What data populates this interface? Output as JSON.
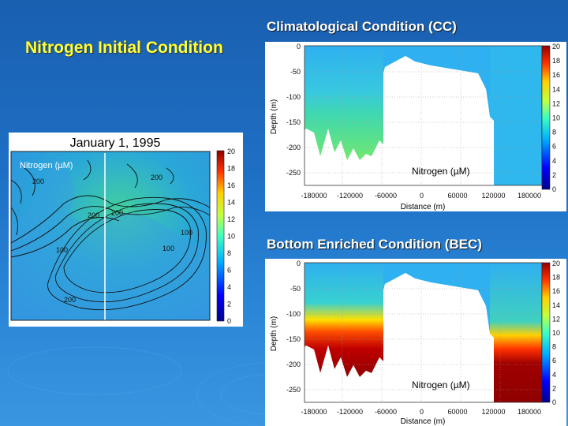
{
  "slide": {
    "title": "Nitrogen Initial Condition",
    "colors": {
      "background": "#1e6fc4",
      "title": "#ffff33",
      "heading": "#ffffff"
    }
  },
  "map_panel": {
    "title": "January 1, 1995",
    "label": "Nitrogen (µM)",
    "contour_labels": [
      "200",
      "200",
      "100",
      "100",
      "200",
      "100",
      "200",
      "200"
    ],
    "colorbar_ticks": [
      "20",
      "18",
      "16",
      "14",
      "12",
      "10",
      "8",
      "6",
      "4",
      "2",
      "0"
    ]
  },
  "cc_panel": {
    "heading": "Climatological Condition (CC)",
    "label": "Nitrogen (µM)",
    "ylabel": "Depth (m)",
    "xlabel": "Distance (m)",
    "y_ticks": [
      "0",
      "-50",
      "-100",
      "-150",
      "-200",
      "-250"
    ],
    "x_ticks": [
      "-180000",
      "-120000",
      "-60000",
      "0",
      "60000",
      "120000",
      "180000"
    ],
    "colorbar_ticks": [
      "20",
      "18",
      "16",
      "14",
      "12",
      "10",
      "8",
      "6",
      "4",
      "2",
      "0"
    ]
  },
  "bec_panel": {
    "heading": "Bottom Enriched Condition (BEC)",
    "label": "Nitrogen (µM)",
    "ylabel": "Depth (m)",
    "xlabel": "Distance (m)",
    "y_ticks": [
      "0",
      "-50",
      "-100",
      "-150",
      "-200",
      "-250"
    ],
    "x_ticks": [
      "-180000",
      "-120000",
      "-60000",
      "0",
      "60000",
      "120000",
      "180000"
    ],
    "colorbar_ticks": [
      "20",
      "18",
      "16",
      "14",
      "12",
      "10",
      "8",
      "6",
      "4",
      "2",
      "0"
    ]
  }
}
